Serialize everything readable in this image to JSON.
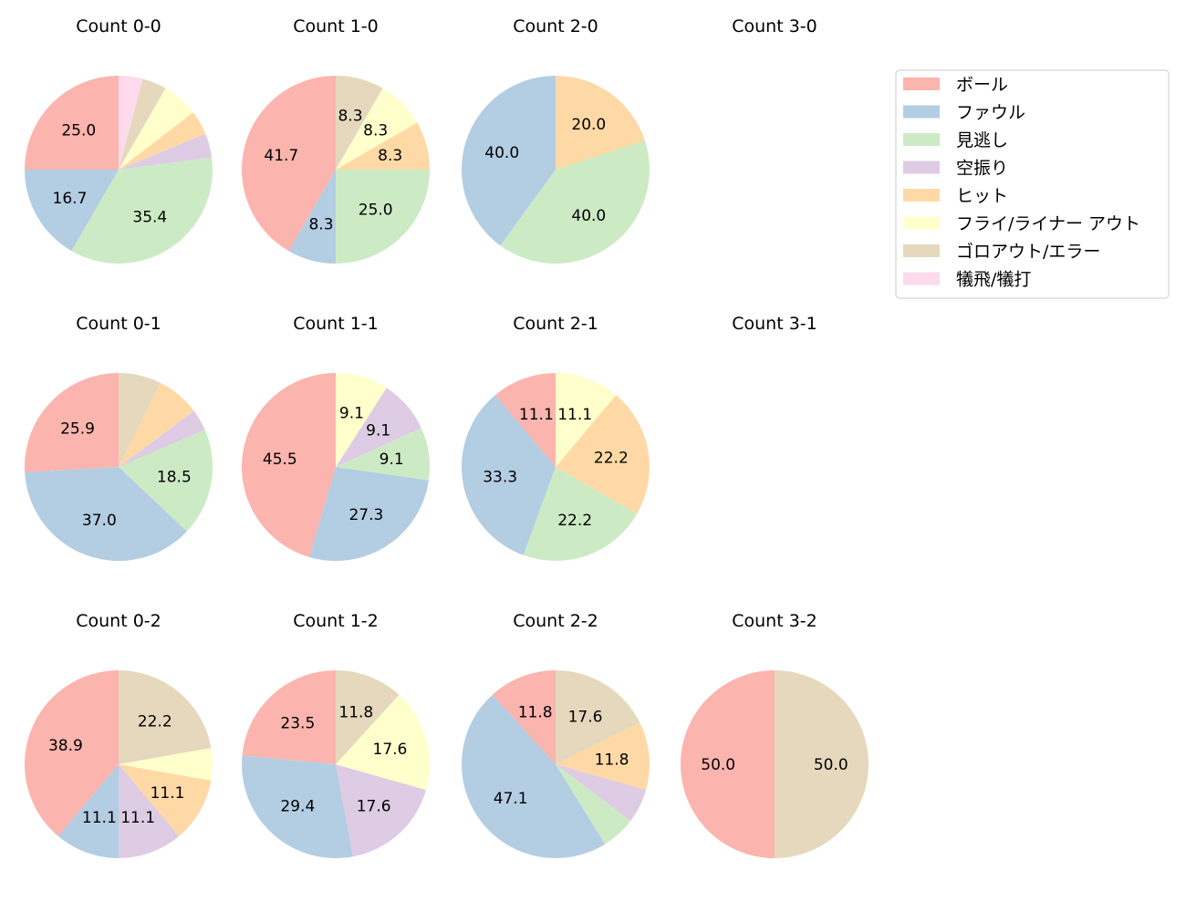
{
  "chart_data": {
    "type": "pie",
    "categories": [
      "ボール",
      "ファウル",
      "見逃し",
      "空振り",
      "ヒット",
      "フライ/ライナー アウト",
      "ゴロアウト/エラー",
      "犠飛/犠打"
    ],
    "colors": [
      "#fbb4ae",
      "#b3cde3",
      "#ccebc5",
      "#decbe4",
      "#fed9a6",
      "#ffffcc",
      "#e5d8bd",
      "#fddaec"
    ],
    "legend_position": "top-right",
    "start_angle_deg": 90,
    "direction": "counterclockwise",
    "label_format": "%.1f (shown for slices of 8% or more)",
    "charts": [
      {
        "title": "Count 0-0",
        "counts": [
          12,
          8,
          17,
          2,
          2,
          3,
          2,
          2
        ]
      },
      {
        "title": "Count 1-0",
        "counts": [
          5,
          1,
          3,
          0,
          1,
          1,
          1,
          0
        ]
      },
      {
        "title": "Count 2-0",
        "counts": [
          0,
          2,
          2,
          0,
          1,
          0,
          0,
          0
        ]
      },
      {
        "title": "Count 3-0",
        "counts": [
          0,
          0,
          0,
          0,
          0,
          0,
          0,
          0
        ]
      },
      {
        "title": "Count 0-1",
        "counts": [
          7,
          10,
          5,
          1,
          2,
          0,
          2,
          0
        ]
      },
      {
        "title": "Count 1-1",
        "counts": [
          5,
          3,
          1,
          1,
          0,
          1,
          0,
          0
        ]
      },
      {
        "title": "Count 2-1",
        "counts": [
          1,
          3,
          2,
          0,
          2,
          1,
          0,
          0
        ]
      },
      {
        "title": "Count 3-1",
        "counts": [
          0,
          0,
          0,
          0,
          0,
          0,
          0,
          0
        ]
      },
      {
        "title": "Count 0-2",
        "counts": [
          7,
          2,
          0,
          2,
          2,
          1,
          4,
          0
        ]
      },
      {
        "title": "Count 1-2",
        "counts": [
          4,
          5,
          0,
          3,
          0,
          3,
          2,
          0
        ]
      },
      {
        "title": "Count 2-2",
        "counts": [
          2,
          8,
          1,
          1,
          2,
          0,
          3,
          0
        ]
      },
      {
        "title": "Count 3-2",
        "counts": [
          1,
          0,
          0,
          0,
          0,
          0,
          1,
          0
        ]
      }
    ]
  }
}
